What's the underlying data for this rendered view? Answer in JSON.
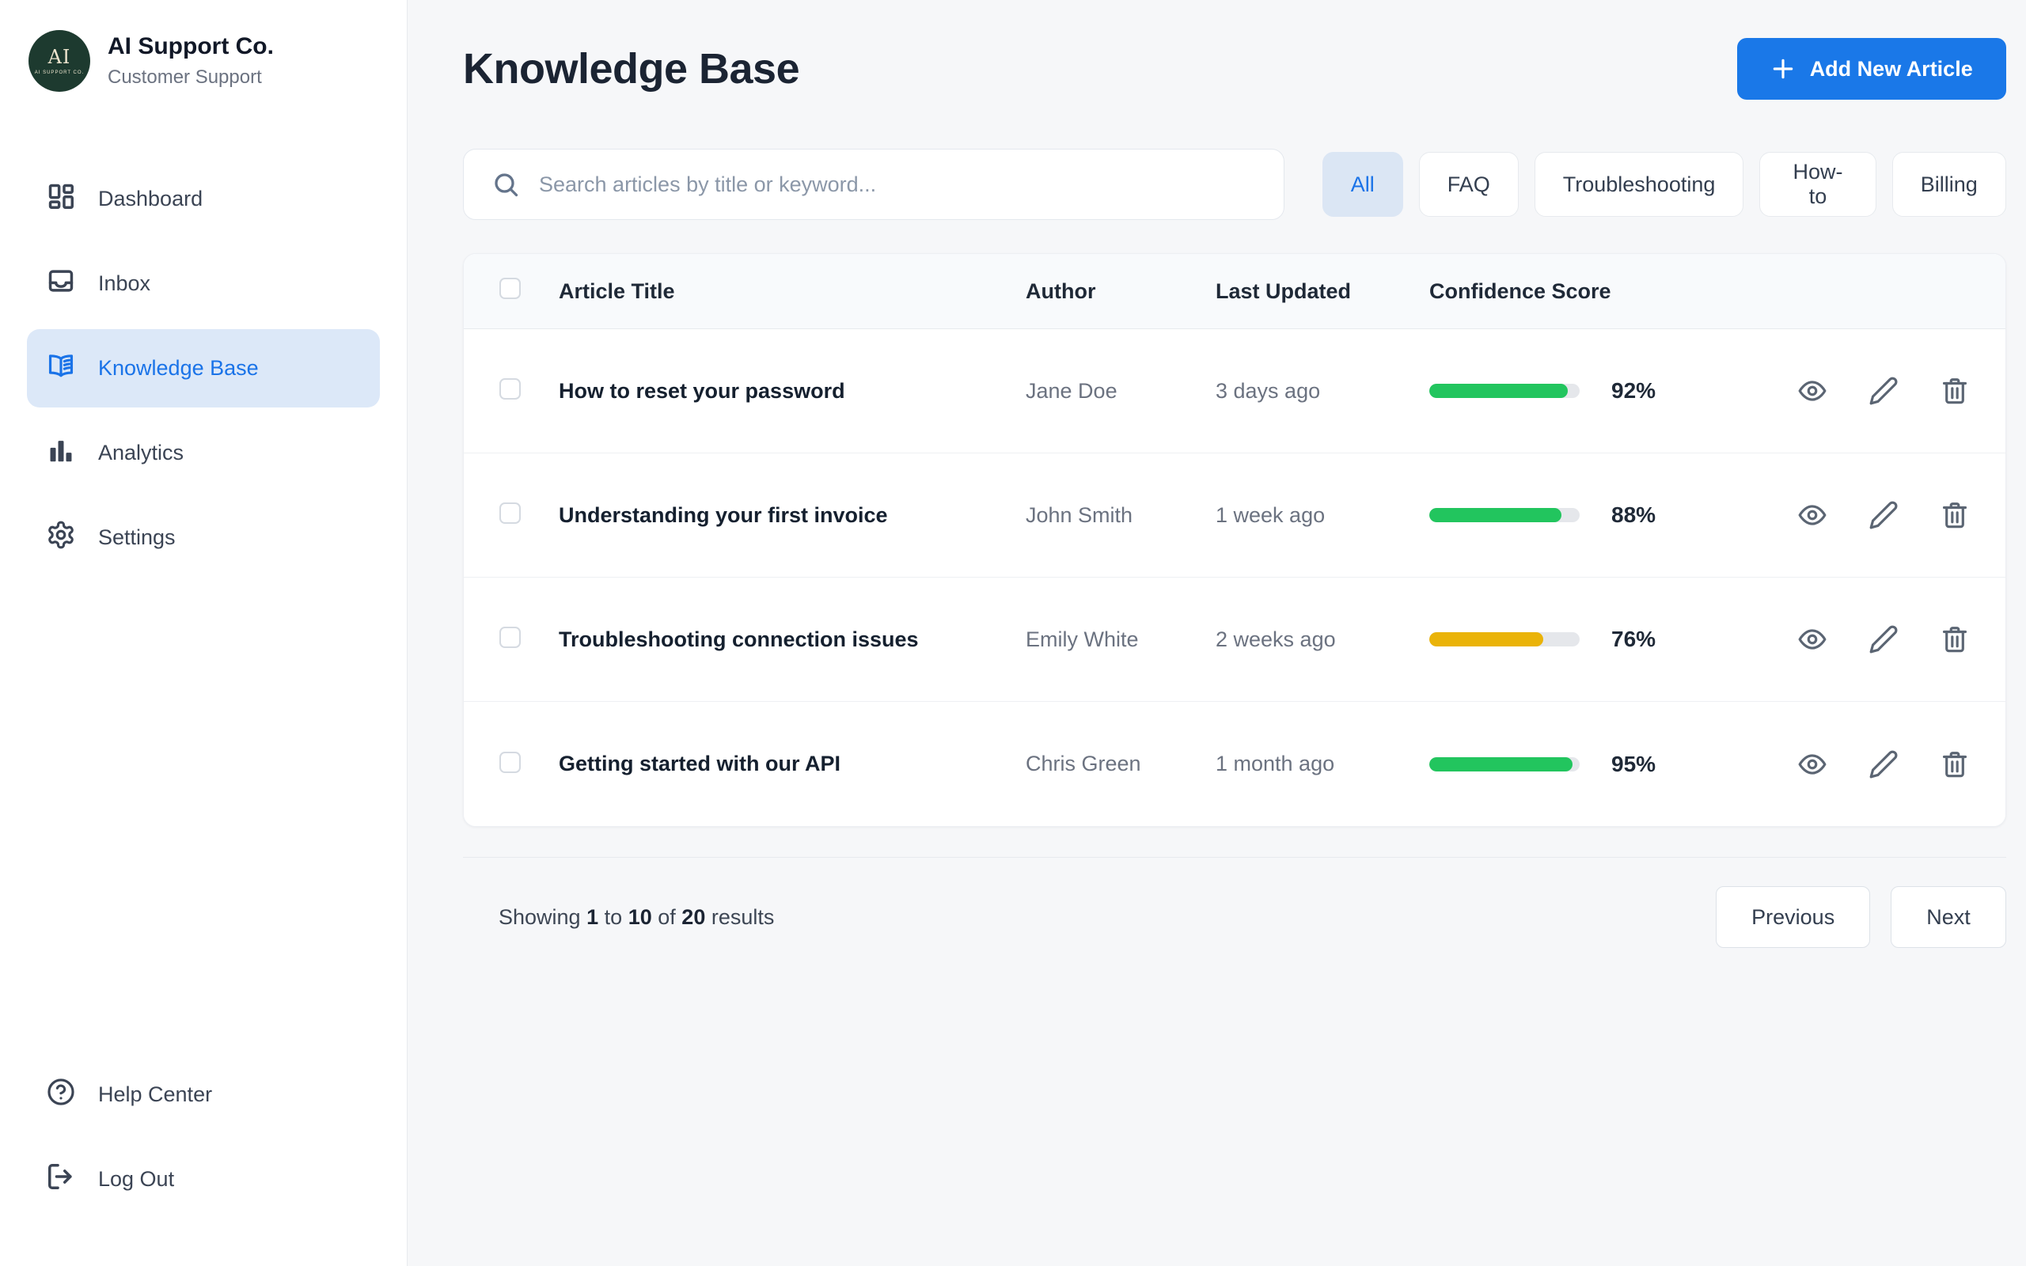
{
  "brand": {
    "name": "AI Support Co.",
    "subtitle": "Customer Support",
    "logo_monogram": "AI",
    "logo_caption": "AI SUPPORT CO.",
    "logo_bg": "#1d3a2f"
  },
  "sidebar": {
    "items": [
      {
        "label": "Dashboard",
        "icon": "dashboard",
        "active": false
      },
      {
        "label": "Inbox",
        "icon": "inbox",
        "active": false
      },
      {
        "label": "Knowledge Base",
        "icon": "book-open",
        "active": true
      },
      {
        "label": "Analytics",
        "icon": "bar-chart",
        "active": false
      },
      {
        "label": "Settings",
        "icon": "gear",
        "active": false
      }
    ],
    "footer_items": [
      {
        "label": "Help Center",
        "icon": "help-circle",
        "active": false
      },
      {
        "label": "Log Out",
        "icon": "log-out",
        "active": false
      }
    ]
  },
  "header": {
    "title": "Knowledge Base",
    "add_button_label": "Add New Article",
    "add_button_icon": "plus"
  },
  "search": {
    "placeholder": "Search articles by title or keyword...",
    "value": "",
    "icon": "search"
  },
  "filters": [
    {
      "label": "All",
      "active": true
    },
    {
      "label": "FAQ",
      "active": false
    },
    {
      "label": "Troubleshooting",
      "active": false
    },
    {
      "label": "How-to",
      "active": false
    },
    {
      "label": "Billing",
      "active": false
    }
  ],
  "table": {
    "columns": {
      "title": "Article Title",
      "author": "Author",
      "updated": "Last Updated",
      "confidence": "Confidence Score"
    },
    "row_action_icons": [
      "eye",
      "pencil",
      "trash"
    ],
    "rows": [
      {
        "title": "How to reset your password",
        "author": "Jane Doe",
        "updated": "3 days ago",
        "score": 92,
        "score_label": "92%",
        "bar_color": "#22c55e"
      },
      {
        "title": "Understanding your first invoice",
        "author": "John Smith",
        "updated": "1 week ago",
        "score": 88,
        "score_label": "88%",
        "bar_color": "#22c55e"
      },
      {
        "title": "Troubleshooting connection issues",
        "author": "Emily White",
        "updated": "2 weeks ago",
        "score": 76,
        "score_label": "76%",
        "bar_color": "#eab308"
      },
      {
        "title": "Getting started with our API",
        "author": "Chris Green",
        "updated": "1 month ago",
        "score": 95,
        "score_label": "95%",
        "bar_color": "#22c55e"
      }
    ]
  },
  "pagination": {
    "p1": "Showing",
    "n1": "1",
    "p2": "to",
    "n2": "10",
    "p3": "of",
    "n3": "20",
    "p4": "results",
    "previous_label": "Previous",
    "next_label": "Next"
  },
  "colors": {
    "accent_blue": "#1a78e8",
    "active_text_blue": "#1a73e8",
    "active_pill_bg": "#dce8f8",
    "green": "#22c55e",
    "amber": "#eab308",
    "track_gray": "#e5e7eb",
    "sidebar_bg": "#ffffff",
    "main_bg": "#f6f7f9"
  }
}
